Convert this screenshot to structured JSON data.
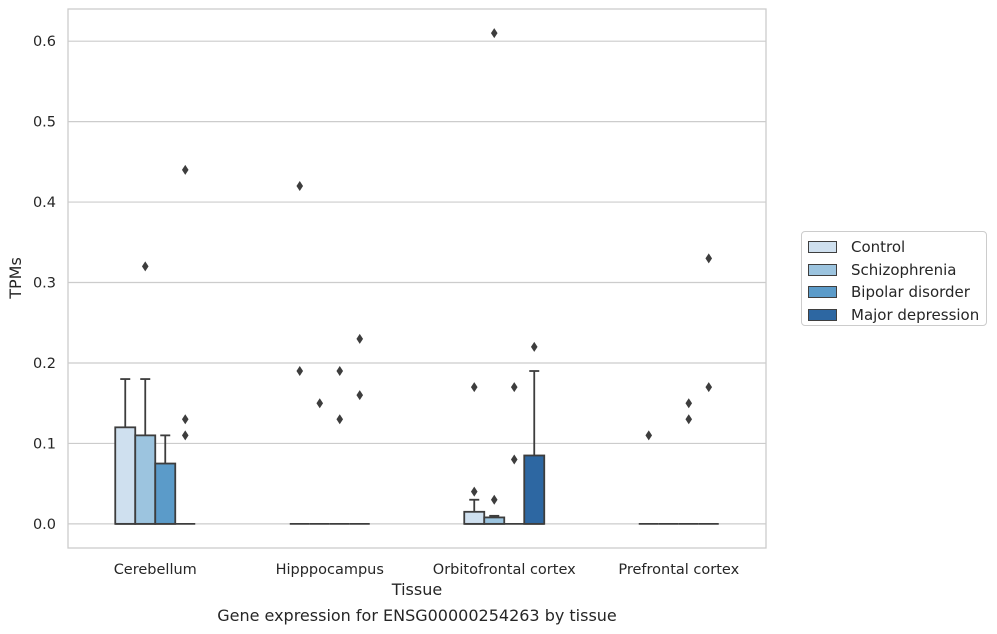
{
  "caption": "Gene expression for ENSG00000254263 by tissue",
  "chart_data": {
    "type": "box",
    "xlabel": "Tissue",
    "ylabel": "TPMs",
    "ylim": [
      -0.03,
      0.64
    ],
    "yticks": [
      0.0,
      0.1,
      0.2,
      0.3,
      0.4,
      0.5,
      0.6
    ],
    "ytick_labels": [
      "0.0",
      "0.1",
      "0.2",
      "0.3",
      "0.4",
      "0.5",
      "0.6"
    ],
    "grid": "horizontal",
    "legend_position": "right",
    "categories": [
      "Cerebellum",
      "Hipppocampus",
      "Orbitofrontal cortex",
      "Prefrontal cortex"
    ],
    "series": [
      {
        "name": "Control",
        "color": "#cfe0ef",
        "boxes": [
          {
            "q1": 0,
            "median": 0,
            "q3": 0.12,
            "whisker_low": 0,
            "whisker_high": 0.18,
            "outliers": []
          },
          {
            "q1": 0,
            "median": 0,
            "q3": 0,
            "whisker_low": 0,
            "whisker_high": 0,
            "outliers": [
              0.42,
              0.19
            ]
          },
          {
            "q1": 0,
            "median": 0,
            "q3": 0.015,
            "whisker_low": 0,
            "whisker_high": 0.03,
            "outliers": [
              0.17,
              0.04
            ]
          },
          {
            "q1": 0,
            "median": 0,
            "q3": 0,
            "whisker_low": 0,
            "whisker_high": 0,
            "outliers": [
              0.11
            ]
          }
        ]
      },
      {
        "name": "Schizophrenia",
        "color": "#9cc4df",
        "boxes": [
          {
            "q1": 0,
            "median": 0,
            "q3": 0.11,
            "whisker_low": 0,
            "whisker_high": 0.18,
            "outliers": [
              0.32
            ]
          },
          {
            "q1": 0,
            "median": 0,
            "q3": 0,
            "whisker_low": 0,
            "whisker_high": 0,
            "outliers": [
              0.15
            ]
          },
          {
            "q1": 0,
            "median": 0,
            "q3": 0.008,
            "whisker_low": 0,
            "whisker_high": 0.01,
            "outliers": [
              0.61,
              0.03
            ]
          },
          {
            "q1": 0,
            "median": 0,
            "q3": 0,
            "whisker_low": 0,
            "whisker_high": 0,
            "outliers": []
          }
        ]
      },
      {
        "name": "Bipolar disorder",
        "color": "#5b9bc9",
        "boxes": [
          {
            "q1": 0,
            "median": 0,
            "q3": 0.075,
            "whisker_low": 0,
            "whisker_high": 0.11,
            "outliers": []
          },
          {
            "q1": 0,
            "median": 0,
            "q3": 0,
            "whisker_low": 0,
            "whisker_high": 0,
            "outliers": [
              0.19,
              0.13
            ]
          },
          {
            "q1": 0,
            "median": 0,
            "q3": 0,
            "whisker_low": 0,
            "whisker_high": 0,
            "outliers": [
              0.17,
              0.08
            ]
          },
          {
            "q1": 0,
            "median": 0,
            "q3": 0,
            "whisker_low": 0,
            "whisker_high": 0,
            "outliers": [
              0.15,
              0.13
            ]
          }
        ]
      },
      {
        "name": "Major depression",
        "color": "#2d67a2",
        "boxes": [
          {
            "q1": 0,
            "median": 0,
            "q3": 0,
            "whisker_low": 0,
            "whisker_high": 0,
            "outliers": [
              0.44,
              0.13,
              0.11
            ]
          },
          {
            "q1": 0,
            "median": 0,
            "q3": 0,
            "whisker_low": 0,
            "whisker_high": 0,
            "outliers": [
              0.23,
              0.16
            ]
          },
          {
            "q1": 0,
            "median": 0,
            "q3": 0.085,
            "whisker_low": 0,
            "whisker_high": 0.19,
            "outliers": [
              0.22
            ]
          },
          {
            "q1": 0,
            "median": 0,
            "q3": 0,
            "whisker_low": 0,
            "whisker_high": 0,
            "outliers": [
              0.33,
              0.17
            ]
          }
        ]
      }
    ]
  }
}
